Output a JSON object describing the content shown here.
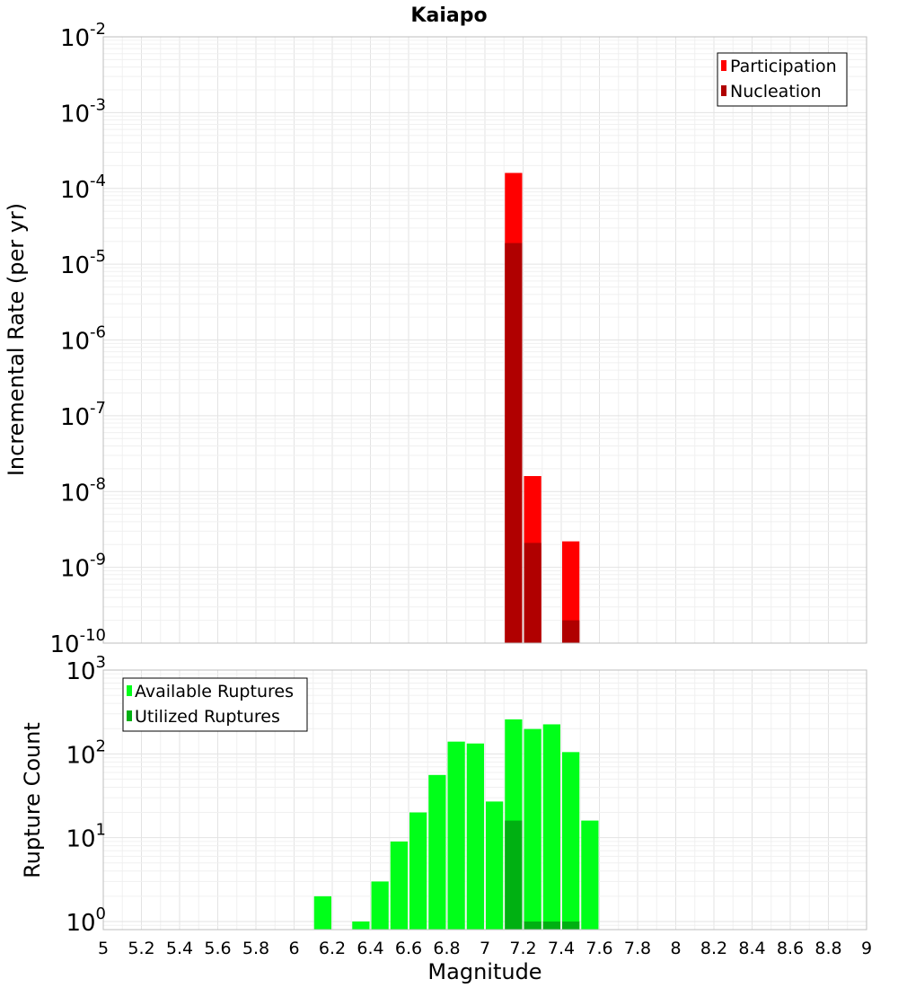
{
  "title": "Kaiapo",
  "chart_data": [
    {
      "type": "bar",
      "title": "Kaiapo",
      "ylabel": "Incremental Rate (per yr)",
      "xlabel": "",
      "yscale": "log",
      "ylim": [
        1e-10,
        0.01
      ],
      "xlim": [
        5,
        9
      ],
      "y_ticks": [
        {
          "base": "10",
          "exp": "-10",
          "value": 1e-10
        },
        {
          "base": "10",
          "exp": "-9",
          "value": 1e-09
        },
        {
          "base": "10",
          "exp": "-8",
          "value": 1e-08
        },
        {
          "base": "10",
          "exp": "-7",
          "value": 1e-07
        },
        {
          "base": "10",
          "exp": "-6",
          "value": 1e-06
        },
        {
          "base": "10",
          "exp": "-5",
          "value": 1e-05
        },
        {
          "base": "10",
          "exp": "-4",
          "value": 0.0001
        },
        {
          "base": "10",
          "exp": "-3",
          "value": 0.001
        },
        {
          "base": "10",
          "exp": "-2",
          "value": 0.01
        }
      ],
      "legend_position": "top-right",
      "grid": true,
      "bin_width": 0.1,
      "series": [
        {
          "name": "Participation",
          "color": "#ff0000",
          "points": [
            {
              "x": 7.15,
              "y": 0.00016
            },
            {
              "x": 7.25,
              "y": 1.6e-08
            },
            {
              "x": 7.45,
              "y": 2.2e-09
            }
          ]
        },
        {
          "name": "Nucleation",
          "color": "#b00000",
          "points": [
            {
              "x": 7.15,
              "y": 1.9e-05
            },
            {
              "x": 7.25,
              "y": 2.1e-09
            },
            {
              "x": 7.45,
              "y": 2e-10
            }
          ]
        }
      ]
    },
    {
      "type": "bar",
      "title": "",
      "ylabel": "Rupture Count",
      "xlabel": "Magnitude",
      "yscale": "log",
      "ylim": [
        0.8,
        1000
      ],
      "xlim": [
        5,
        9
      ],
      "y_ticks": [
        {
          "base": "10",
          "exp": "0",
          "value": 1
        },
        {
          "base": "10",
          "exp": "1",
          "value": 10
        },
        {
          "base": "10",
          "exp": "2",
          "value": 100
        },
        {
          "base": "10",
          "exp": "3",
          "value": 1000
        }
      ],
      "x_ticks": [
        "5",
        "5.2",
        "5.4",
        "5.6",
        "5.8",
        "6",
        "6.2",
        "6.4",
        "6.6",
        "6.8",
        "7",
        "7.2",
        "7.4",
        "7.6",
        "7.8",
        "8",
        "8.2",
        "8.4",
        "8.6",
        "8.8",
        "9"
      ],
      "legend_position": "top-left",
      "grid": true,
      "bin_width": 0.1,
      "series": [
        {
          "name": "Available Ruptures",
          "color": "#00ff19",
          "points": [
            {
              "x": 6.15,
              "y": 2
            },
            {
              "x": 6.35,
              "y": 1
            },
            {
              "x": 6.45,
              "y": 3
            },
            {
              "x": 6.55,
              "y": 9
            },
            {
              "x": 6.65,
              "y": 20
            },
            {
              "x": 6.75,
              "y": 56
            },
            {
              "x": 6.85,
              "y": 140
            },
            {
              "x": 6.95,
              "y": 133
            },
            {
              "x": 7.05,
              "y": 27
            },
            {
              "x": 7.15,
              "y": 258
            },
            {
              "x": 7.25,
              "y": 198
            },
            {
              "x": 7.35,
              "y": 225
            },
            {
              "x": 7.45,
              "y": 105
            },
            {
              "x": 7.55,
              "y": 16
            }
          ]
        },
        {
          "name": "Utilized Ruptures",
          "color": "#00b012",
          "points": [
            {
              "x": 7.15,
              "y": 16
            },
            {
              "x": 7.25,
              "y": 1
            },
            {
              "x": 7.35,
              "y": 1
            },
            {
              "x": 7.45,
              "y": 1
            }
          ]
        }
      ]
    }
  ]
}
